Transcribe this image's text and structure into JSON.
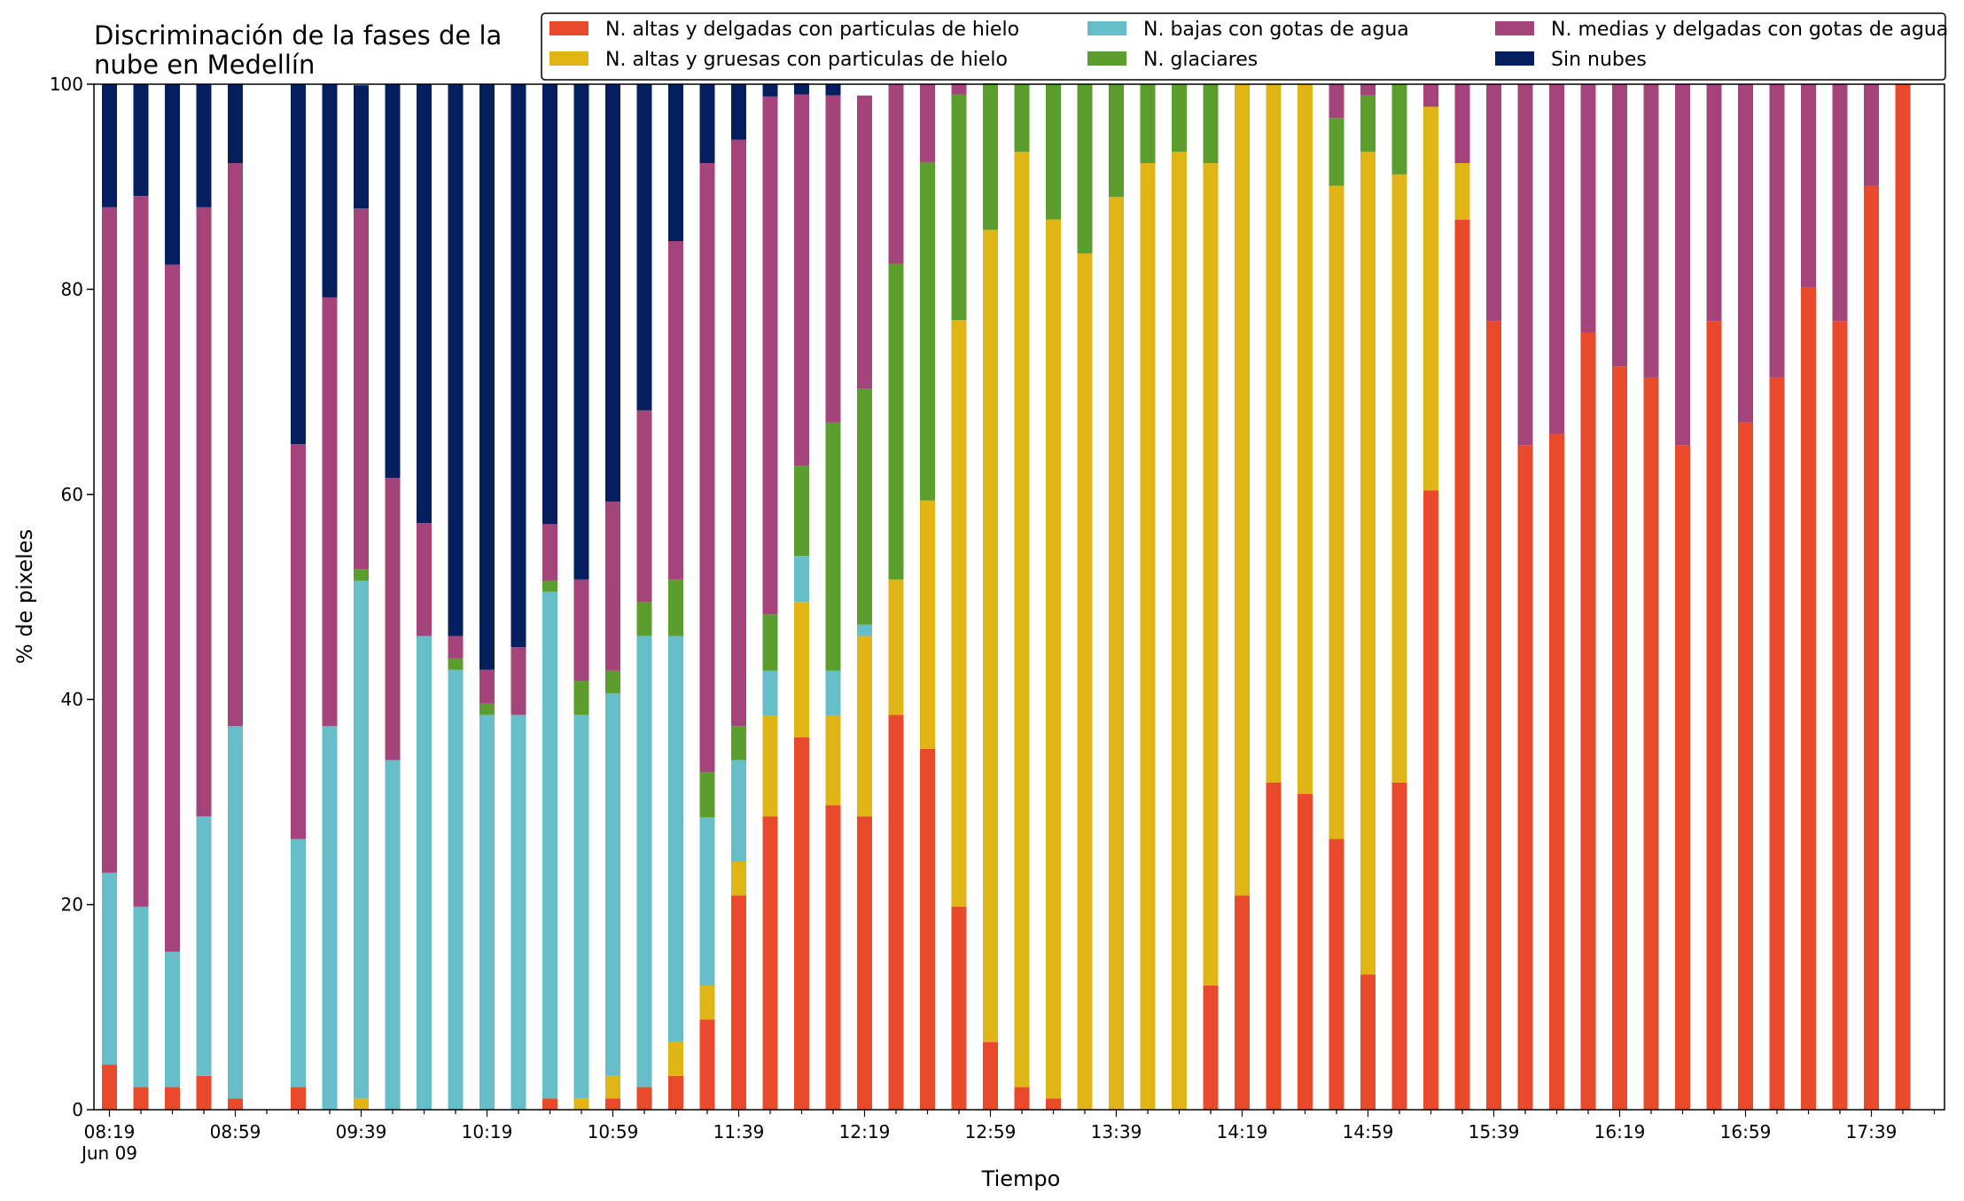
{
  "chart_data": {
    "type": "bar",
    "stacked": true,
    "title_lines": [
      "Discriminación de la fases de la",
      "nube en Medellín"
    ],
    "xlabel": "Tiempo",
    "ylabel": "% de pixeles",
    "ylim": [
      0,
      100
    ],
    "yticks": [
      "0",
      "20",
      "40",
      "60",
      "80",
      "100"
    ],
    "grid": false,
    "legend_placement": "top-right",
    "x_tick_labels": [
      "08:19",
      "08:59",
      "09:39",
      "10:19",
      "10:59",
      "11:39",
      "12:19",
      "12:59",
      "13:39",
      "14:19",
      "14:59",
      "15:39",
      "16:19",
      "16:59",
      "17:39"
    ],
    "x_date_label": "Jun 09",
    "x_tick_interval_minutes": 10,
    "x_label_interval_minutes": 40,
    "categories": [
      "08:19",
      "08:29",
      "08:39",
      "08:49",
      "08:59",
      "09:09",
      "09:19",
      "09:29",
      "09:39",
      "09:49",
      "09:59",
      "10:09",
      "10:19",
      "10:29",
      "10:39",
      "10:49",
      "10:59",
      "11:09",
      "11:19",
      "11:29",
      "11:39",
      "11:49",
      "11:59",
      "12:09",
      "12:19",
      "12:29",
      "12:39",
      "12:49",
      "12:59",
      "13:09",
      "13:19",
      "13:29",
      "13:39",
      "13:49",
      "13:59",
      "14:09",
      "14:19",
      "14:29",
      "14:39",
      "14:49",
      "14:59",
      "15:09",
      "15:19",
      "15:29",
      "15:39",
      "15:49",
      "15:59",
      "16:09",
      "16:19",
      "16:29",
      "16:39",
      "16:49",
      "16:59",
      "17:09",
      "17:19",
      "17:29",
      "17:39",
      "17:49"
    ],
    "series": [
      {
        "name": "N. altas y delgadas con particulas de hielo",
        "color": "#e84a2b",
        "values": [
          4.4,
          2.2,
          2.2,
          3.3,
          1.1,
          0,
          2.2,
          0,
          0,
          0,
          0,
          0,
          0,
          0,
          1.1,
          0,
          1.1,
          2.2,
          3.3,
          8.8,
          20.9,
          28.6,
          36.3,
          29.7,
          28.6,
          38.5,
          35.2,
          19.8,
          6.6,
          2.2,
          1.1,
          0,
          0,
          0,
          0,
          12.1,
          20.9,
          31.9,
          30.8,
          26.4,
          13.2,
          31.9,
          60.4,
          86.8,
          76.9,
          64.8,
          65.9,
          75.8,
          72.5,
          71.4,
          64.8,
          76.9,
          67,
          71.4,
          80.2,
          76.9,
          90.1,
          100
        ]
      },
      {
        "name": "N. altas y gruesas con particulas de hielo",
        "color": "#e2b517",
        "values": [
          0,
          0,
          0,
          0,
          0,
          0,
          0,
          0,
          1.1,
          0,
          0,
          0,
          0,
          0,
          0,
          1.1,
          2.2,
          0,
          3.3,
          3.3,
          3.3,
          9.8,
          13.2,
          8.7,
          17.6,
          13.2,
          24.2,
          57.2,
          79.2,
          91.2,
          85.7,
          83.5,
          89,
          92.3,
          93.4,
          80.2,
          79.1,
          68.1,
          69.2,
          63.7,
          80.2,
          59.3,
          37.4,
          5.5,
          0,
          0,
          0,
          0,
          0,
          0,
          0,
          0,
          0,
          0,
          0,
          0,
          0,
          0
        ]
      },
      {
        "name": "N. bajas con gotas de agua",
        "color": "#65bec8",
        "values": [
          18.7,
          17.6,
          13.2,
          25.3,
          36.3,
          0,
          24.2,
          37.4,
          50.5,
          34.1,
          46.2,
          42.9,
          38.5,
          38.5,
          49.4,
          37.4,
          37.3,
          44,
          39.6,
          16.4,
          9.9,
          4.4,
          4.5,
          4.4,
          1.1,
          0,
          0,
          0,
          0,
          0,
          0,
          0,
          0,
          0,
          0,
          0,
          0,
          0,
          0,
          0,
          0,
          0,
          0,
          0,
          0,
          0,
          0,
          0,
          0,
          0,
          0,
          0,
          0,
          0,
          0,
          0,
          0,
          0
        ]
      },
      {
        "name": "N. glaciares",
        "color": "#5c9e2e",
        "values": [
          0,
          0,
          0,
          0,
          0,
          0,
          0,
          0,
          1.1,
          0,
          0,
          1.1,
          1.1,
          0,
          1.1,
          3.3,
          2.2,
          3.3,
          5.5,
          4.4,
          3.3,
          5.5,
          8.8,
          24.2,
          23,
          30.8,
          33,
          22,
          14.3,
          6.6,
          13.2,
          16.5,
          11,
          7.7,
          6.6,
          7.7,
          0,
          0,
          0,
          6.6,
          5.5,
          8.8,
          0,
          0,
          0,
          0,
          0,
          0,
          0,
          0,
          0,
          0,
          0,
          0,
          0,
          0,
          0,
          0
        ]
      },
      {
        "name": "N. medias y delgadas con gotas de agua",
        "color": "#a4447a",
        "values": [
          64.9,
          69.3,
          67,
          59.4,
          54.9,
          0,
          38.5,
          41.8,
          35.2,
          27.5,
          11,
          2.2,
          3.3,
          6.6,
          5.5,
          9.9,
          16.5,
          18.7,
          33,
          59.4,
          57.2,
          50.5,
          36.2,
          31.9,
          28.6,
          17.5,
          7.6,
          1.1,
          0,
          0,
          0,
          0,
          0,
          0,
          0,
          0,
          0,
          0,
          0,
          3.3,
          1.1,
          0,
          2.2,
          7.7,
          23.1,
          35.2,
          34.1,
          24.2,
          27.5,
          28.6,
          35.2,
          23.1,
          33,
          28.6,
          19.8,
          23.1,
          9.9,
          0
        ]
      },
      {
        "name": "Sin nubes",
        "color": "#051f5e",
        "values": [
          12,
          10.9,
          17.6,
          12,
          7.7,
          0,
          35.1,
          20.8,
          12,
          38.4,
          42.8,
          53.8,
          57.1,
          54.9,
          42.9,
          48.3,
          40.7,
          31.8,
          15.3,
          7.7,
          5.4,
          1.2,
          1.1,
          1.1,
          0,
          0,
          0,
          0,
          0,
          0,
          0,
          0,
          0,
          0,
          0,
          0,
          0,
          0,
          0,
          0,
          0,
          0,
          0,
          0,
          0,
          0,
          0,
          0,
          0,
          0,
          0,
          0,
          0,
          0,
          0,
          0,
          0,
          0
        ]
      }
    ]
  }
}
